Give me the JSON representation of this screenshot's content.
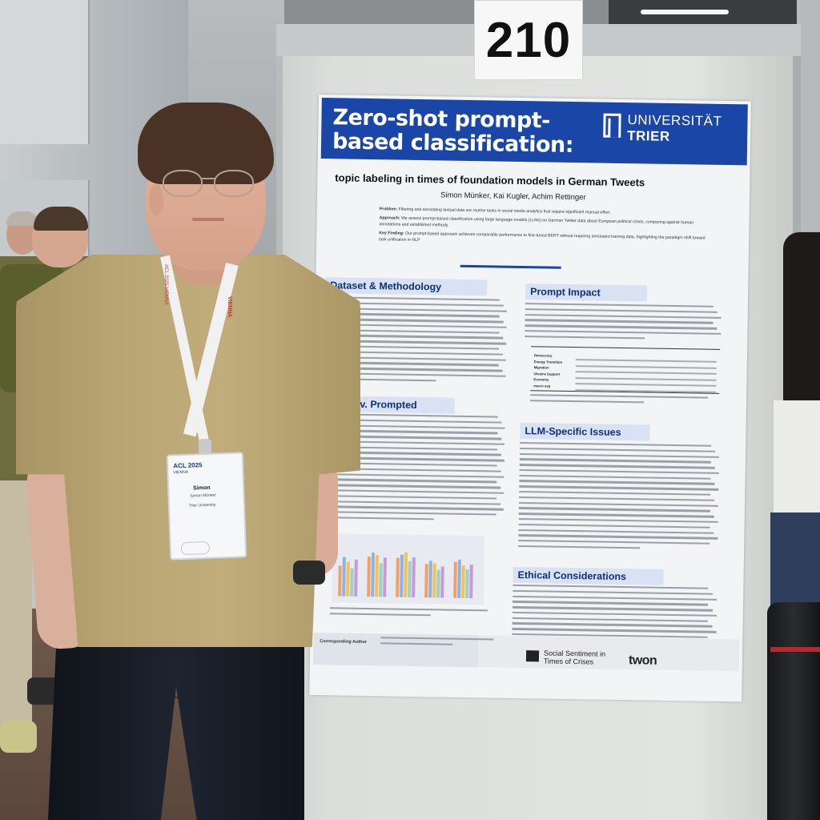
{
  "booth": {
    "number": "210"
  },
  "poster": {
    "title": "Zero-shot prompt-based classification:",
    "subtitle": "topic labeling in times of foundation models in German Tweets",
    "authors": "Simon Münker, Kai Kugler, Achim Rettinger",
    "university": {
      "line1": "UNIVERSITÄT",
      "line2": "TRIER"
    },
    "intro": {
      "problem_label": "Problem:",
      "problem": "Filtering and annotating textual data are routine tasks in social media analytics that require significant manual effort.",
      "approach_label": "Approach:",
      "approach": "We assess prompt-based classification using large language models (LLMs) on German Twitter data about European political crises, comparing against human annotations and established methods.",
      "finding_label": "Key Finding:",
      "finding": "Our prompt-based approach achieves comparable performance to fine-tuned BERT without requiring annotated training data, highlighting the paradigm shift toward task unification in NLP"
    },
    "sections": {
      "dataset": "Dataset & Methodology",
      "prompt": "Prompt Impact",
      "learned": "arned v. Prompted",
      "llm": "LLM-Specific Issues",
      "ethics": "Ethical Considerations"
    },
    "table_rows": [
      "Democracy",
      "Energy Transition",
      "Migration",
      "Ukraine Support",
      "Economy",
      "macro avg"
    ],
    "footer": {
      "contact_label": "Corresponding Author",
      "project_1": "Social Sentiment in",
      "project_2": "Times of Crises",
      "twon": "twon"
    }
  },
  "badge": {
    "event": "ACL 2025",
    "event_sub": "VIENNA",
    "name": "Simon",
    "fullname": "Simon Münker",
    "affiliation": "Trier University"
  },
  "lanyard": {
    "left": "ACL 2025 VIENNA",
    "right": "VIENNA"
  },
  "chart_bars": [
    [
      0.55,
      0.7,
      0.62,
      0.5,
      0.66
    ],
    [
      0.72,
      0.78,
      0.74,
      0.6,
      0.7
    ],
    [
      0.7,
      0.76,
      0.8,
      0.64,
      0.72
    ],
    [
      0.6,
      0.66,
      0.62,
      0.5,
      0.56
    ],
    [
      0.64,
      0.68,
      0.58,
      0.52,
      0.6
    ]
  ],
  "colors": {
    "poster_blue": "#1a46a8",
    "shirt": "#b9a574",
    "shorts": "#1d2430",
    "chart_series": [
      "#f0a16b",
      "#8fb3e0",
      "#f3c15a",
      "#9fd0c2",
      "#c79ad8"
    ]
  }
}
